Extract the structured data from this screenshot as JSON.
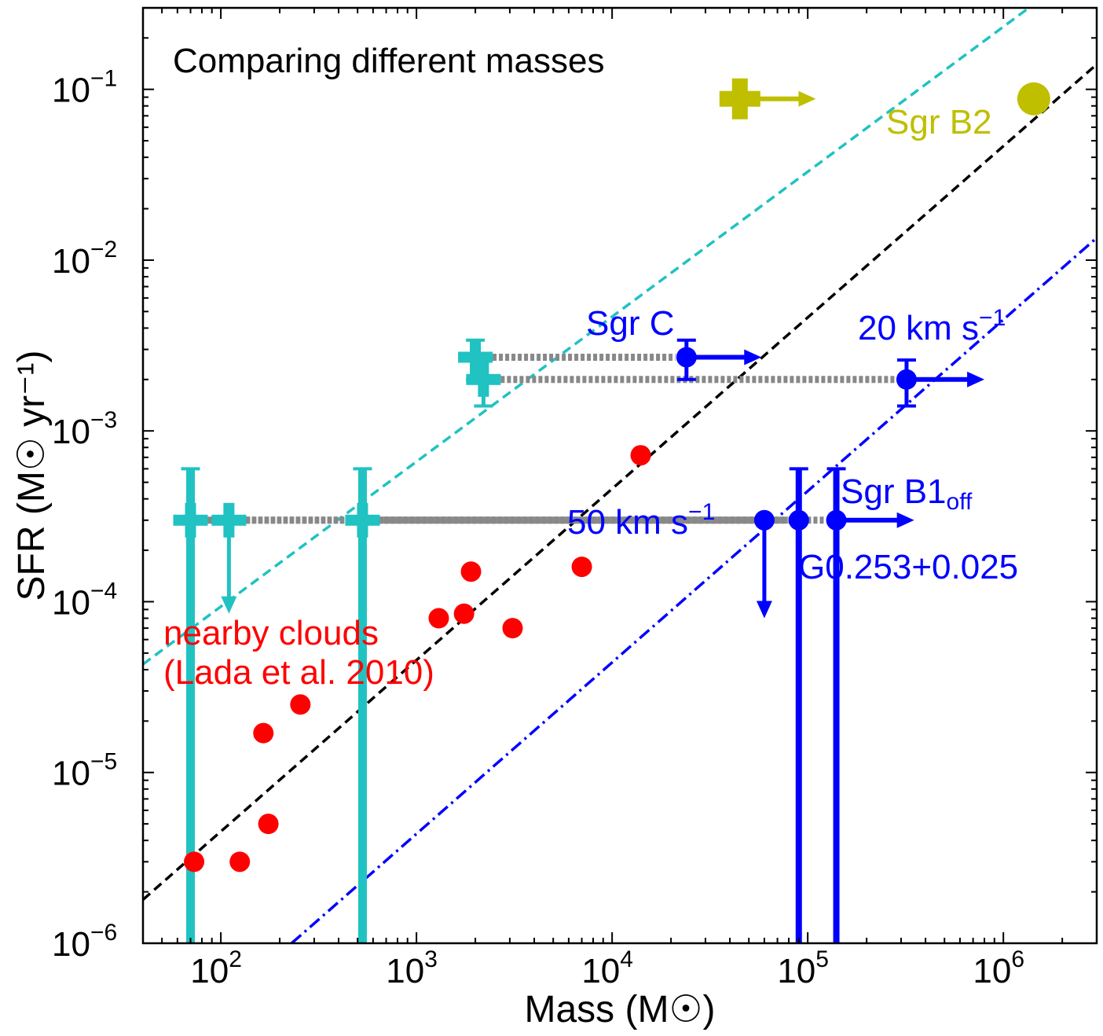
{
  "chart_data": {
    "type": "scatter",
    "title": "Comparing different masses",
    "xlabel": "Mass (M☉)",
    "ylabel": "SFR (M☉ yr⁻¹)",
    "xscale": "log",
    "yscale": "log",
    "xlim": [
      40,
      3000000
    ],
    "ylim": [
      1e-06,
      0.3
    ],
    "grid": false,
    "x_ticks": [
      {
        "value": 100,
        "mantissa": "10",
        "exp": "2"
      },
      {
        "value": 1000,
        "mantissa": "10",
        "exp": "3"
      },
      {
        "value": 10000,
        "mantissa": "10",
        "exp": "4"
      },
      {
        "value": 100000,
        "mantissa": "10",
        "exp": "5"
      },
      {
        "value": 1000000,
        "mantissa": "10",
        "exp": "6"
      }
    ],
    "y_ticks": [
      {
        "value": 1e-06,
        "mantissa": "10",
        "exp": "−6"
      },
      {
        "value": 1e-05,
        "mantissa": "10",
        "exp": "−5"
      },
      {
        "value": 0.0001,
        "mantissa": "10",
        "exp": "−4"
      },
      {
        "value": 0.001,
        "mantissa": "10",
        "exp": "−3"
      },
      {
        "value": 0.01,
        "mantissa": "10",
        "exp": "−2"
      },
      {
        "value": 0.1,
        "mantissa": "10",
        "exp": "−1"
      }
    ],
    "colors": {
      "nearby": "#ff0000",
      "cmz": "#0000ff",
      "cyan": "#20c2c2",
      "sgrb2": "#bfbf00",
      "connector": "#888888",
      "black_line": "#000000"
    },
    "reference_lines": [
      {
        "style": "dashed",
        "color": "#20c2c2",
        "points": [
          [
            40,
            4.3e-05
          ],
          [
            1350000,
            0.3
          ]
        ]
      },
      {
        "style": "dashed",
        "color": "#000000",
        "points": [
          [
            40,
            1.8e-06
          ],
          [
            3000000,
            0.14
          ]
        ]
      },
      {
        "style": "dashdot",
        "color": "#0000ff",
        "points": [
          [
            230,
            1e-06
          ],
          [
            3000000,
            0.0135
          ]
        ]
      }
    ],
    "nearby_clouds": {
      "label_line1": "nearby clouds",
      "label_line2": "(Lada et al. 2010)",
      "points": [
        [
          73,
          3e-06
        ],
        [
          125,
          3e-06
        ],
        [
          175,
          5e-06
        ],
        [
          165,
          1.7e-05
        ],
        [
          255,
          2.5e-05
        ],
        [
          1300,
          8e-05
        ],
        [
          1750,
          8.5e-05
        ],
        [
          3100,
          7e-05
        ],
        [
          1900,
          0.00015
        ],
        [
          7000,
          0.00016
        ],
        [
          14000,
          0.00072
        ]
      ]
    },
    "sgr_b2": {
      "label": "Sgr B2",
      "circle": [
        1430000,
        0.088
      ],
      "cross": [
        45000,
        0.088
      ],
      "arrow_to": [
        110000,
        0.088
      ]
    },
    "cmz_clouds": [
      {
        "label": "Sgr C",
        "x": 24000,
        "y": 0.0027,
        "yerr": [
          0.002,
          0.0034
        ],
        "arrow_to": 58000,
        "cyan_x": 2000,
        "cyan_y": 0.0027,
        "cyan_yerr": [
          0.002,
          0.0034
        ]
      },
      {
        "label": "20 km s⁻¹",
        "x": 320000,
        "y": 0.002,
        "yerr": [
          0.0014,
          0.0026
        ],
        "arrow_to": 800000,
        "cyan_x": 2200,
        "cyan_y": 0.002,
        "cyan_yerr": [
          0.0014,
          0.0026
        ]
      },
      {
        "label": "50 km s⁻¹",
        "x": 60000,
        "y": 0.0003,
        "upper_limit_to": 8e-05,
        "cyan_x": 110,
        "cyan_y": 0.0003,
        "cyan_upper_limit_to": 8.5e-05
      },
      {
        "label": "G0.253+0.025",
        "x": 90000,
        "y": 0.0003,
        "yerr": [
          1e-06,
          0.0006
        ],
        "cyan_x": 70,
        "cyan_y": 0.0003,
        "cyan_yerr": [
          1e-06,
          0.0006
        ]
      },
      {
        "label": "Sgr B1_off",
        "x": 140000,
        "y": 0.0003,
        "yerr": [
          1e-06,
          0.0006
        ],
        "arrow_to": 350000,
        "cyan_x": 530,
        "cyan_y": 0.0003,
        "cyan_yerr": [
          1e-06,
          0.0006
        ]
      }
    ],
    "annotations": {
      "sgr_c": "Sgr C",
      "kms20_main": "20 km s",
      "kms20_sup": "−1",
      "kms50_main": "50 km s",
      "kms50_sup": "−1",
      "sgrb1_main": "Sgr B1",
      "sgrb1_sub": "off",
      "g0253": "G0.253+0.025"
    }
  }
}
